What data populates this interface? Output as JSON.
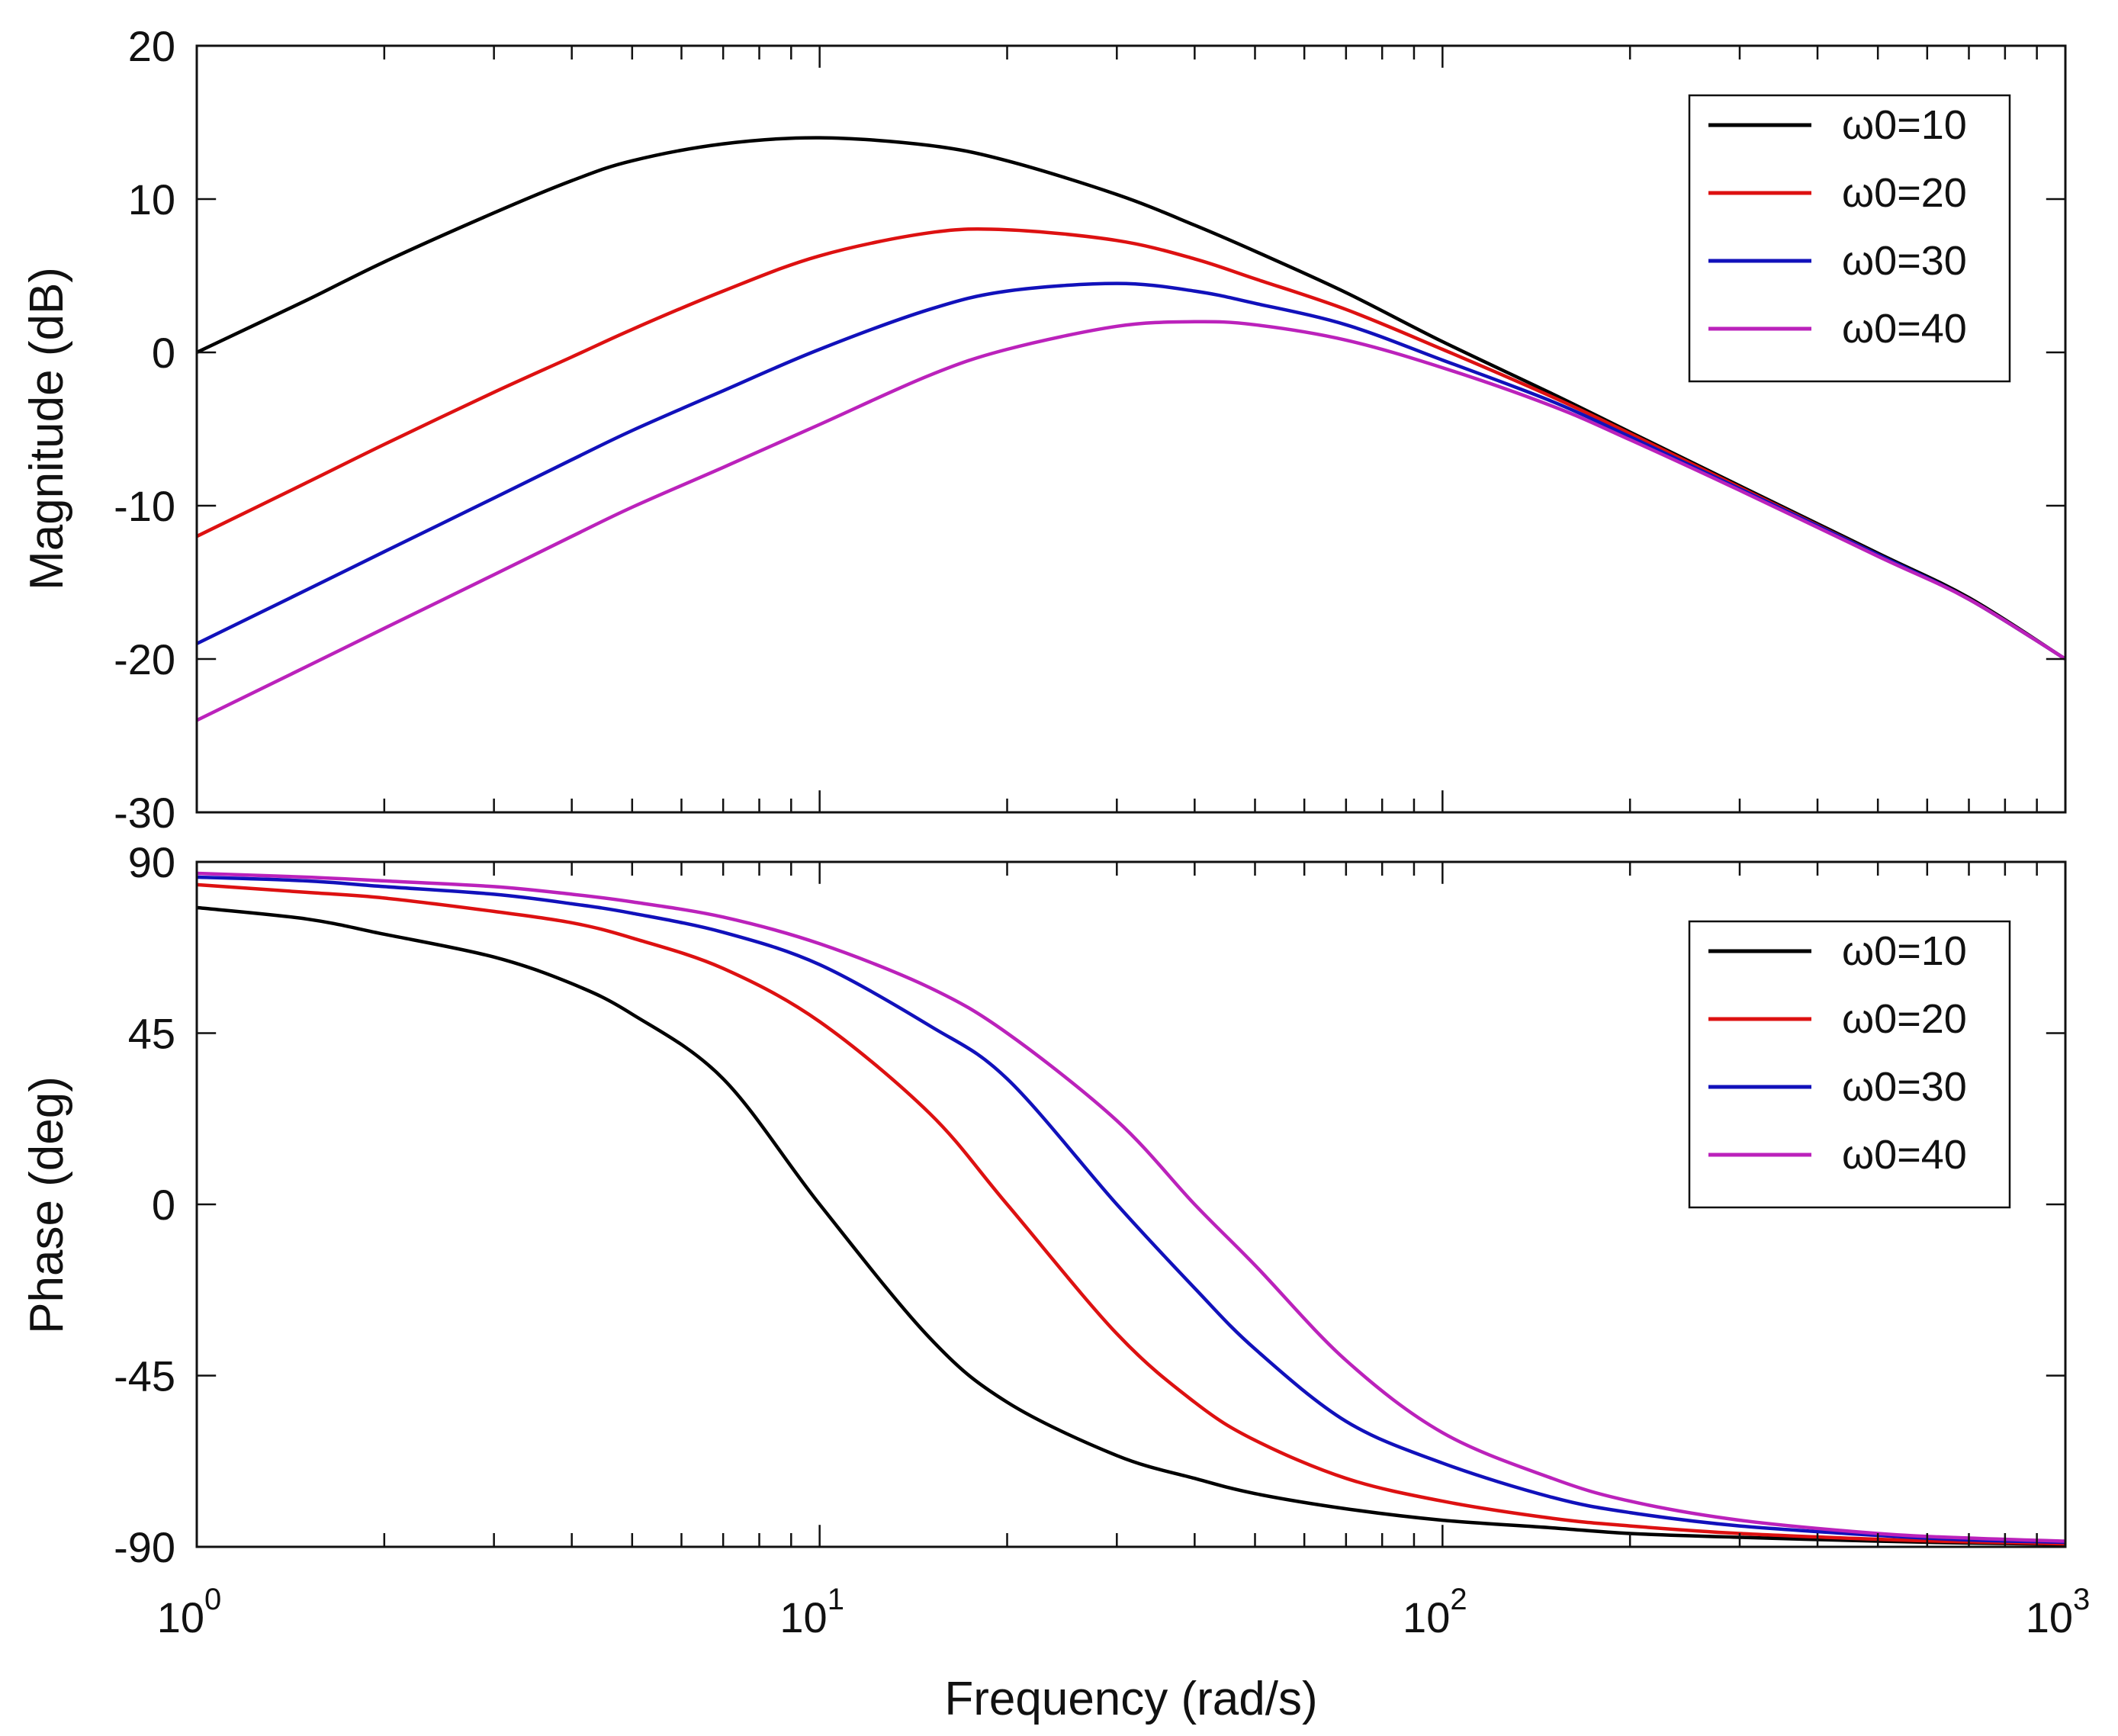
{
  "chart_data": [
    {
      "type": "line",
      "panel": "magnitude",
      "ylabel": "Magnitude (dB)",
      "xscale": "log",
      "xlim": [
        1,
        1000
      ],
      "ylim": [
        -30,
        20
      ],
      "yticks": [
        "20",
        "10",
        "0",
        "-10",
        "-20",
        "-30"
      ],
      "ytick_values": [
        20,
        10,
        0,
        -10,
        -20,
        -30
      ],
      "grid": false,
      "legend_position": "top-right",
      "x": [
        1,
        1.5,
        2,
        3,
        4,
        5,
        7,
        10,
        15,
        20,
        30,
        40,
        50,
        70,
        100,
        150,
        200,
        300,
        500,
        700,
        1000
      ],
      "series": [
        {
          "name": "ω0=10",
          "color": "#000000",
          "values": [
            0,
            3.4,
            5.9,
            9.1,
            11.2,
            12.5,
            13.6,
            14.0,
            13.5,
            12.5,
            10.3,
            8.3,
            6.6,
            3.9,
            0.7,
            -2.7,
            -5.2,
            -8.7,
            -13.1,
            -16.0,
            -20.0
          ]
        },
        {
          "name": "ω0=20",
          "color": "#dd1111",
          "values": [
            -12.0,
            -8.5,
            -6.0,
            -2.6,
            -0.3,
            1.5,
            4.0,
            6.3,
            7.8,
            8.0,
            7.3,
            6.1,
            4.8,
            2.8,
            0.2,
            -2.9,
            -5.3,
            -8.8,
            -13.2,
            -16.1,
            -20.0
          ]
        },
        {
          "name": "ω0=30",
          "color": "#1111bb",
          "values": [
            -19.0,
            -15.5,
            -13.0,
            -9.5,
            -7.0,
            -5.1,
            -2.5,
            0.2,
            2.8,
            4.0,
            4.5,
            4.0,
            3.2,
            1.8,
            -0.5,
            -3.2,
            -5.5,
            -8.9,
            -13.2,
            -16.1,
            -20.0
          ]
        },
        {
          "name": "ω0=40",
          "color": "#bb22bb",
          "values": [
            -24.0,
            -20.5,
            -18.0,
            -14.5,
            -12.0,
            -10.1,
            -7.5,
            -4.7,
            -1.5,
            0.2,
            1.7,
            2.0,
            1.8,
            0.8,
            -1.0,
            -3.5,
            -5.7,
            -9.0,
            -13.3,
            -16.1,
            -20.0
          ]
        }
      ]
    },
    {
      "type": "line",
      "panel": "phase",
      "ylabel": "Phase (deg)",
      "xlabel": "Frequency  (rad/s)",
      "xscale": "log",
      "xlim": [
        1,
        1000
      ],
      "ylim": [
        -90,
        90
      ],
      "yticks": [
        "90",
        "45",
        "0",
        "-45",
        "-90"
      ],
      "ytick_values": [
        90,
        45,
        0,
        -45,
        -90
      ],
      "xticks": [
        1,
        10,
        100,
        1000
      ],
      "xtick_base": "10",
      "xtick_exponents": [
        "0",
        "1",
        "2",
        "3"
      ],
      "grid": false,
      "legend_position": "top-right",
      "x": [
        1,
        1.5,
        2,
        3,
        4,
        5,
        7,
        10,
        15,
        20,
        30,
        40,
        50,
        70,
        100,
        150,
        200,
        300,
        500,
        700,
        1000
      ],
      "series": [
        {
          "name": "ω0=10",
          "color": "#000000",
          "values": [
            78,
            75,
            71,
            65,
            58,
            50,
            33,
            0,
            -35,
            -52,
            -66,
            -72,
            -76,
            -80,
            -83,
            -85,
            -86.5,
            -87.5,
            -88.5,
            -89,
            -89.3
          ]
        },
        {
          "name": "ω0=20",
          "color": "#dd1111",
          "values": [
            84,
            82,
            80.5,
            77,
            74,
            70,
            62,
            48,
            24,
            0,
            -34,
            -52,
            -62,
            -72,
            -78,
            -82.5,
            -84.5,
            -86.5,
            -88,
            -88.7,
            -89.2
          ]
        },
        {
          "name": "ω0=30",
          "color": "#1111bb",
          "values": [
            86,
            85,
            83.5,
            81.5,
            79,
            76.5,
            71.5,
            63,
            47,
            33,
            0,
            -22,
            -38,
            -57,
            -68,
            -77,
            -81,
            -84.5,
            -87,
            -88.2,
            -88.8
          ]
        },
        {
          "name": "ω0=40",
          "color": "#bb22bb",
          "values": [
            87,
            86,
            85,
            83.5,
            81.5,
            79.5,
            75.5,
            68.5,
            57,
            45,
            22,
            0,
            -16,
            -41,
            -60,
            -72,
            -78,
            -83,
            -86.5,
            -87.7,
            -88.5
          ]
        }
      ]
    }
  ]
}
